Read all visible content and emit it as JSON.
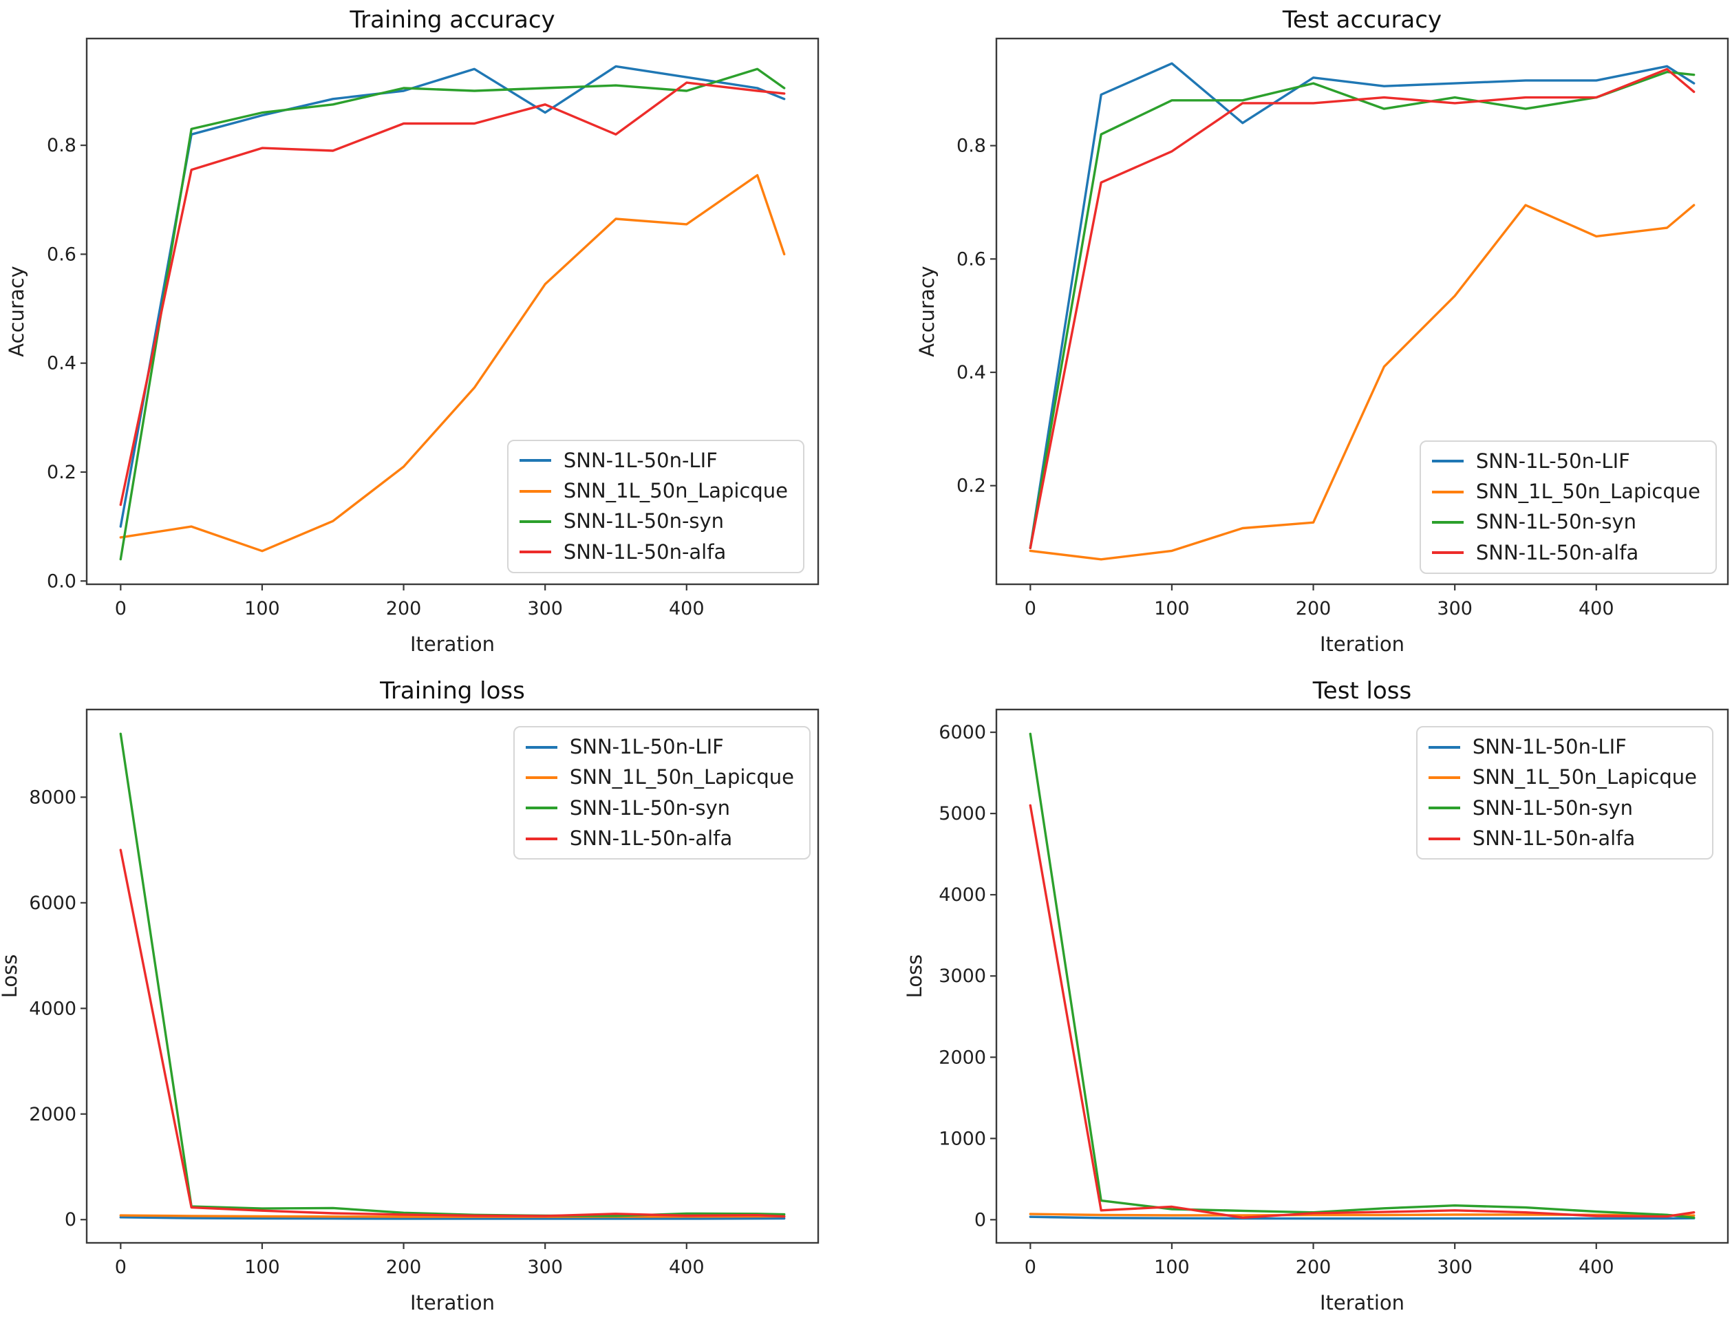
{
  "figure": {
    "background": "#ffffff",
    "text_color": "#1f1f1f",
    "frame_color": "#3a3a3a",
    "accent_colors": {
      "blue": "#1f77b4",
      "orange": "#ff7f0e",
      "green": "#2ca02c",
      "red": "#ed2c2a"
    }
  },
  "chart_data": [
    {
      "id": "training-accuracy",
      "type": "line",
      "title": "Training accuracy",
      "xlabel": "Iteration",
      "ylabel": "Accuracy",
      "legend_position": "lower-right",
      "grid": false,
      "x": [
        0,
        50,
        100,
        150,
        200,
        250,
        300,
        350,
        400,
        450,
        469
      ],
      "xlim": [
        -24,
        493
      ],
      "ylim": [
        -0.006,
        0.996
      ],
      "xticks": {
        "values": [
          0,
          100,
          200,
          300,
          400
        ],
        "labels": [
          "0",
          "100",
          "200",
          "300",
          "400"
        ]
      },
      "yticks": {
        "values": [
          0.0,
          0.2,
          0.4,
          0.6,
          0.8
        ],
        "labels": [
          "0.0",
          "0.2",
          "0.4",
          "0.6",
          "0.8"
        ]
      },
      "series": [
        {
          "name": "SNN-1L-50n-LIF",
          "color": "#1f77b4",
          "values": [
            0.1,
            0.82,
            0.855,
            0.885,
            0.9,
            0.94,
            0.86,
            0.945,
            0.925,
            0.905,
            0.885
          ]
        },
        {
          "name": "SNN_1L_50n_Lapicque",
          "color": "#ff7f0e",
          "values": [
            0.08,
            0.1,
            0.055,
            0.11,
            0.21,
            0.355,
            0.545,
            0.665,
            0.655,
            0.745,
            0.6
          ]
        },
        {
          "name": "SNN-1L-50n-syn",
          "color": "#2ca02c",
          "values": [
            0.04,
            0.83,
            0.86,
            0.875,
            0.905,
            0.9,
            0.905,
            0.91,
            0.9,
            0.94,
            0.905
          ]
        },
        {
          "name": "SNN-1L-50n-alfa",
          "color": "#ed2c2a",
          "values": [
            0.14,
            0.755,
            0.795,
            0.79,
            0.84,
            0.84,
            0.875,
            0.82,
            0.915,
            0.9,
            0.895
          ]
        }
      ]
    },
    {
      "id": "test-accuracy",
      "type": "line",
      "title": "Test accuracy",
      "xlabel": "Iteration",
      "ylabel": "Accuracy",
      "legend_position": "lower-right",
      "grid": false,
      "x": [
        0,
        50,
        100,
        150,
        200,
        250,
        300,
        350,
        400,
        450,
        469
      ],
      "xlim": [
        -24,
        493
      ],
      "ylim": [
        0.026,
        0.989
      ],
      "xticks": {
        "values": [
          0,
          100,
          200,
          300,
          400
        ],
        "labels": [
          "0",
          "100",
          "200",
          "300",
          "400"
        ]
      },
      "yticks": {
        "values": [
          0.2,
          0.4,
          0.6,
          0.8
        ],
        "labels": [
          "0.2",
          "0.4",
          "0.6",
          "0.8"
        ]
      },
      "series": [
        {
          "name": "SNN-1L-50n-LIF",
          "color": "#1f77b4",
          "values": [
            0.09,
            0.89,
            0.945,
            0.84,
            0.92,
            0.905,
            0.91,
            0.915,
            0.915,
            0.94,
            0.91
          ]
        },
        {
          "name": "SNN_1L_50n_Lapicque",
          "color": "#ff7f0e",
          "values": [
            0.085,
            0.07,
            0.085,
            0.125,
            0.135,
            0.41,
            0.535,
            0.695,
            0.64,
            0.655,
            0.695
          ]
        },
        {
          "name": "SNN-1L-50n-syn",
          "color": "#2ca02c",
          "values": [
            0.09,
            0.82,
            0.88,
            0.88,
            0.91,
            0.865,
            0.885,
            0.865,
            0.885,
            0.93,
            0.925
          ]
        },
        {
          "name": "SNN-1L-50n-alfa",
          "color": "#ed2c2a",
          "values": [
            0.09,
            0.735,
            0.79,
            0.875,
            0.875,
            0.885,
            0.875,
            0.885,
            0.885,
            0.935,
            0.895
          ]
        }
      ]
    },
    {
      "id": "training-loss",
      "type": "line",
      "title": "Training loss",
      "xlabel": "Iteration",
      "ylabel": "Loss",
      "legend_position": "upper-right",
      "grid": false,
      "x": [
        0,
        50,
        100,
        150,
        200,
        250,
        300,
        350,
        400,
        450,
        469
      ],
      "xlim": [
        -24,
        493
      ],
      "ylim": [
        -440,
        9660
      ],
      "xticks": {
        "values": [
          0,
          100,
          200,
          300,
          400
        ],
        "labels": [
          "0",
          "100",
          "200",
          "300",
          "400"
        ]
      },
      "yticks": {
        "values": [
          0,
          2000,
          4000,
          6000,
          8000
        ],
        "labels": [
          "0",
          "2000",
          "4000",
          "6000",
          "8000"
        ]
      },
      "series": [
        {
          "name": "SNN-1L-50n-LIF",
          "color": "#1f77b4",
          "values": [
            45,
            28,
            22,
            20,
            18,
            18,
            18,
            18,
            18,
            20,
            22
          ]
        },
        {
          "name": "SNN_1L_50n_Lapicque",
          "color": "#ff7f0e",
          "values": [
            80,
            70,
            62,
            58,
            55,
            54,
            54,
            55,
            58,
            60,
            60
          ]
        },
        {
          "name": "SNN-1L-50n-syn",
          "color": "#2ca02c",
          "values": [
            9200,
            250,
            210,
            220,
            130,
            90,
            75,
            70,
            115,
            110,
            100
          ]
        },
        {
          "name": "SNN-1L-50n-alfa",
          "color": "#ed2c2a",
          "values": [
            7000,
            230,
            170,
            120,
            95,
            75,
            70,
            110,
            75,
            85,
            60
          ]
        }
      ]
    },
    {
      "id": "test-loss",
      "type": "line",
      "title": "Test loss",
      "xlabel": "Iteration",
      "ylabel": "Loss",
      "legend_position": "upper-right",
      "grid": false,
      "x": [
        0,
        50,
        100,
        150,
        200,
        250,
        300,
        350,
        400,
        450,
        469
      ],
      "xlim": [
        -24,
        493
      ],
      "ylim": [
        -285,
        6280
      ],
      "xticks": {
        "values": [
          0,
          100,
          200,
          300,
          400
        ],
        "labels": [
          "0",
          "100",
          "200",
          "300",
          "400"
        ]
      },
      "yticks": {
        "values": [
          0,
          1000,
          2000,
          3000,
          4000,
          5000,
          6000
        ],
        "labels": [
          "0",
          "1000",
          "2000",
          "3000",
          "4000",
          "5000",
          "6000"
        ]
      },
      "series": [
        {
          "name": "SNN-1L-50n-LIF",
          "color": "#1f77b4",
          "values": [
            35,
            22,
            18,
            15,
            14,
            14,
            15,
            15,
            15,
            16,
            18
          ]
        },
        {
          "name": "SNN_1L_50n_Lapicque",
          "color": "#ff7f0e",
          "values": [
            70,
            58,
            55,
            55,
            57,
            58,
            62,
            62,
            60,
            55,
            52
          ]
        },
        {
          "name": "SNN-1L-50n-syn",
          "color": "#2ca02c",
          "values": [
            5980,
            235,
            130,
            110,
            90,
            140,
            175,
            150,
            100,
            60,
            25
          ]
        },
        {
          "name": "SNN-1L-50n-alfa",
          "color": "#ed2c2a",
          "values": [
            5100,
            115,
            160,
            25,
            80,
            95,
            115,
            90,
            45,
            40,
            90
          ]
        }
      ]
    }
  ]
}
